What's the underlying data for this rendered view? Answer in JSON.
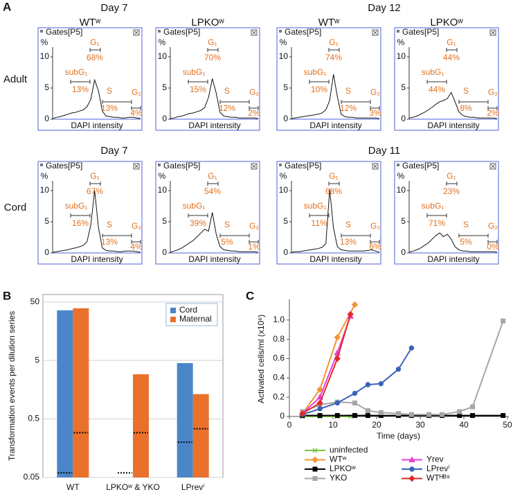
{
  "panels": [
    "A",
    "B",
    "C"
  ],
  "panel_a": {
    "days": [
      "Day 7",
      "Day 12",
      "Day 7",
      "Day 11"
    ],
    "columns": [
      "WTʷ",
      "LPKOʷ",
      "WTʷ",
      "LPKOʷ"
    ],
    "rows": [
      "Adult",
      "Cord"
    ]
  },
  "chart_data": [
    {
      "type": "trace",
      "gate_name": "Gates[P5]",
      "ylabel": "%",
      "xlabel": "DAPI intensity",
      "ylim": [
        0,
        11.5
      ],
      "yticks": [
        0,
        5,
        10
      ],
      "values": [
        0.1,
        0.3,
        0.4,
        0.6,
        0.8,
        1.0,
        1.1,
        1.3,
        1.5,
        2.0,
        3.2,
        6.3,
        4.5,
        1.3,
        0.5,
        0.4,
        0.3,
        0.3,
        0.2,
        0.2,
        0.3,
        0.3,
        0.2,
        0.1
      ],
      "gates": [
        "subG₁",
        "G₁",
        "S",
        "G₂"
      ],
      "gate_values": [
        13,
        68,
        13,
        4
      ],
      "gate_value_labels": [
        "13%",
        "68%",
        "13%",
        "4%"
      ]
    },
    {
      "type": "trace",
      "gate_name": "Gates[P5]",
      "ylabel": "%",
      "xlabel": "DAPI intensity",
      "ylim": [
        0,
        11.5
      ],
      "yticks": [
        0,
        5,
        10
      ],
      "values": [
        0.1,
        0.2,
        0.4,
        0.5,
        0.7,
        0.9,
        1.0,
        1.2,
        1.4,
        1.9,
        3.5,
        6.5,
        4.2,
        1.1,
        0.5,
        0.4,
        0.3,
        0.3,
        0.2,
        0.2,
        0.2,
        0.2,
        0.2,
        0.1
      ],
      "gates": [
        "subG₁",
        "G₁",
        "S",
        "G₂"
      ],
      "gate_values": [
        15,
        70,
        12,
        2
      ],
      "gate_value_labels": [
        "15%",
        "70%",
        "12%",
        "2%"
      ]
    },
    {
      "type": "trace",
      "gate_name": "Gates[P5]",
      "ylabel": "%",
      "xlabel": "DAPI intensity",
      "ylim": [
        0,
        11.5
      ],
      "yticks": [
        0,
        5,
        10
      ],
      "values": [
        0.1,
        0.2,
        0.3,
        0.4,
        0.5,
        0.6,
        0.7,
        0.8,
        1.0,
        1.5,
        3.0,
        7.2,
        3.6,
        0.8,
        0.4,
        0.3,
        0.3,
        0.2,
        0.2,
        0.2,
        0.2,
        0.2,
        0.2,
        0.1
      ],
      "gates": [
        "subG₁",
        "G₁",
        "S",
        "G₂"
      ],
      "gate_values": [
        10,
        74,
        12,
        3
      ],
      "gate_value_labels": [
        "10%",
        "74%",
        "12%",
        "3%"
      ]
    },
    {
      "type": "trace",
      "gate_name": "Gates[P5]",
      "ylabel": "%",
      "xlabel": "DAPI intensity",
      "ylim": [
        0,
        11.5
      ],
      "yticks": [
        0,
        5,
        10
      ],
      "values": [
        0.2,
        0.3,
        0.5,
        0.8,
        1.1,
        1.5,
        1.9,
        2.4,
        2.8,
        3.0,
        3.3,
        4.3,
        2.8,
        1.2,
        0.6,
        0.4,
        0.3,
        0.3,
        0.2,
        0.2,
        0.2,
        0.2,
        0.2,
        0.1
      ],
      "gates": [
        "subG₁",
        "G₁",
        "S",
        "G₂"
      ],
      "gate_values": [
        44,
        44,
        8,
        2
      ],
      "gate_value_labels": [
        "44%",
        "44%",
        "8%",
        "2%"
      ]
    },
    {
      "type": "trace",
      "gate_name": "Gates[P5]",
      "ylabel": "%",
      "xlabel": "DAPI intensity",
      "ylim": [
        0,
        11.5
      ],
      "yticks": [
        0,
        5,
        10
      ],
      "values": [
        0.1,
        0.2,
        0.3,
        0.4,
        0.5,
        0.7,
        0.8,
        1.0,
        1.2,
        1.8,
        4.5,
        10.0,
        4.0,
        0.8,
        0.4,
        0.3,
        0.3,
        0.2,
        0.2,
        0.3,
        0.3,
        0.3,
        0.2,
        0.1
      ],
      "gates": [
        "subG₁",
        "G₁",
        "S",
        "G₂"
      ],
      "gate_values": [
        16,
        67,
        13,
        4
      ],
      "gate_value_labels": [
        "16%",
        "67%",
        "13%",
        "4%"
      ]
    },
    {
      "type": "trace",
      "gate_name": "Gates[P5]",
      "ylabel": "%",
      "xlabel": "DAPI intensity",
      "ylim": [
        0,
        11.5
      ],
      "yticks": [
        0,
        5,
        10
      ],
      "values": [
        0.1,
        0.3,
        0.5,
        0.8,
        1.2,
        1.6,
        2.0,
        2.6,
        3.2,
        3.8,
        3.5,
        6.5,
        3.0,
        1.0,
        0.5,
        0.4,
        0.3,
        0.3,
        0.2,
        0.2,
        0.2,
        0.2,
        0.2,
        0.1
      ],
      "gates": [
        "subG₁",
        "G₁",
        "S",
        "G₂"
      ],
      "gate_values": [
        39,
        54,
        5,
        1
      ],
      "gate_value_labels": [
        "39%",
        "54%",
        "5%",
        "1%"
      ]
    },
    {
      "type": "trace",
      "gate_name": "Gates[P5]",
      "ylabel": "%",
      "xlabel": "DAPI intensity",
      "ylim": [
        0,
        11.5
      ],
      "yticks": [
        0,
        5,
        10
      ],
      "values": [
        0.1,
        0.2,
        0.2,
        0.3,
        0.4,
        0.5,
        0.6,
        0.7,
        0.9,
        1.5,
        10.2,
        4.0,
        1.0,
        0.5,
        0.4,
        0.3,
        0.3,
        0.3,
        0.3,
        0.3,
        0.4,
        0.5,
        0.3,
        0.1
      ],
      "gates": [
        "subG₁",
        "G₁",
        "S",
        "G₂"
      ],
      "gate_values": [
        11,
        68,
        13,
        6
      ],
      "gate_value_labels": [
        "11%",
        "68%",
        "13%",
        "6%"
      ]
    },
    {
      "type": "trace",
      "gate_name": "Gates[P5]",
      "ylabel": "%",
      "xlabel": "DAPI intensity",
      "ylim": [
        0,
        11.5
      ],
      "yticks": [
        0,
        5,
        10
      ],
      "values": [
        0.1,
        0.3,
        0.5,
        0.8,
        1.2,
        1.6,
        2.2,
        2.8,
        3.2,
        2.6,
        3.0,
        2.2,
        1.0,
        0.5,
        0.3,
        0.3,
        0.2,
        0.2,
        0.2,
        0.2,
        0.2,
        0.2,
        0.2,
        0.1
      ],
      "gates": [
        "subG₁",
        "G₁",
        "S",
        "G₂"
      ],
      "gate_values": [
        71,
        23,
        5,
        0
      ],
      "gate_value_labels": [
        "71%",
        "23%",
        "5%",
        "0%"
      ]
    },
    {
      "type": "bar",
      "ylabel": "Transformation events per dilution series",
      "log": true,
      "grid": true,
      "legend": "upper right",
      "categories": [
        "WT",
        "LPKOʷ & YKO",
        "LPrevⁱ"
      ],
      "ylim": [
        0.05,
        67
      ],
      "yticks": [
        0.05,
        0.5,
        5,
        50
      ],
      "series": [
        {
          "name": "Cord",
          "color": "#4a86c8",
          "values": [
            36,
            null,
            4.5
          ],
          "thresholds": [
            0.06,
            0.06,
            0.2
          ]
        },
        {
          "name": "Maternal",
          "color": "#e9712c",
          "values": [
            39,
            2.9,
            1.33
          ],
          "thresholds": [
            0.29,
            0.29,
            0.34
          ]
        }
      ]
    },
    {
      "type": "line",
      "xlabel": "Time (days)",
      "ylabel": "Activated cells/ml (x10⁶)",
      "xlim": [
        0,
        50
      ],
      "xticks": [
        0,
        10,
        20,
        30,
        40,
        50
      ],
      "ylim": [
        0,
        1.2
      ],
      "yticks": [
        0,
        0.2,
        0.4,
        0.6,
        0.8,
        {
          "value": 1,
          "label": "1.0"
        }
      ],
      "series": [
        {
          "name": "uninfected",
          "color": "#7dc442",
          "marker": "x",
          "x": [
            3,
            7,
            11,
            14
          ],
          "values": [
            0,
            0,
            0,
            0
          ]
        },
        {
          "name": "WTʷ",
          "color": "#f39530",
          "marker": "diamond",
          "x": [
            3,
            7,
            11,
            15
          ],
          "values": [
            0.03,
            0.28,
            0.82,
            1.16
          ]
        },
        {
          "name": "LPKOʷ",
          "color": "#000000",
          "marker": "square",
          "x": [
            3,
            7,
            11,
            15,
            18,
            21,
            25,
            28,
            32,
            35,
            39,
            42,
            49
          ],
          "values": [
            0.01,
            0.01,
            0.01,
            0.01,
            0.01,
            0.01,
            0.01,
            0.01,
            0.01,
            0.01,
            0.01,
            0.01,
            0.01
          ]
        },
        {
          "name": "YKO",
          "color": "#a6a6a6",
          "marker": "square",
          "x": [
            3,
            7,
            11,
            15,
            18,
            21,
            25,
            28,
            32,
            35,
            39,
            42,
            49
          ],
          "values": [
            0.05,
            0.12,
            0.15,
            0.14,
            0.06,
            0.04,
            0.03,
            0.02,
            0.02,
            0.02,
            0.05,
            0.1,
            0.99
          ]
        },
        {
          "name": "Yrev",
          "color": "#e83fd6",
          "marker": "triangle",
          "x": [
            3,
            7,
            11,
            14
          ],
          "values": [
            0.03,
            0.2,
            0.66,
            1.04
          ]
        },
        {
          "name": "LPrevⁱ",
          "color": "#3a62b8",
          "marker": "circle",
          "x": [
            3,
            7,
            11,
            15,
            18,
            21,
            25,
            28
          ],
          "values": [
            0.02,
            0.08,
            0.14,
            0.24,
            0.33,
            0.34,
            0.49,
            0.71
          ]
        },
        {
          "name": "WTᴴᴮ⁹",
          "color": "#e02a2a",
          "marker": "diamond",
          "x": [
            3,
            7,
            11,
            14
          ],
          "values": [
            0.03,
            0.14,
            0.6,
            1.06
          ]
        }
      ]
    }
  ]
}
